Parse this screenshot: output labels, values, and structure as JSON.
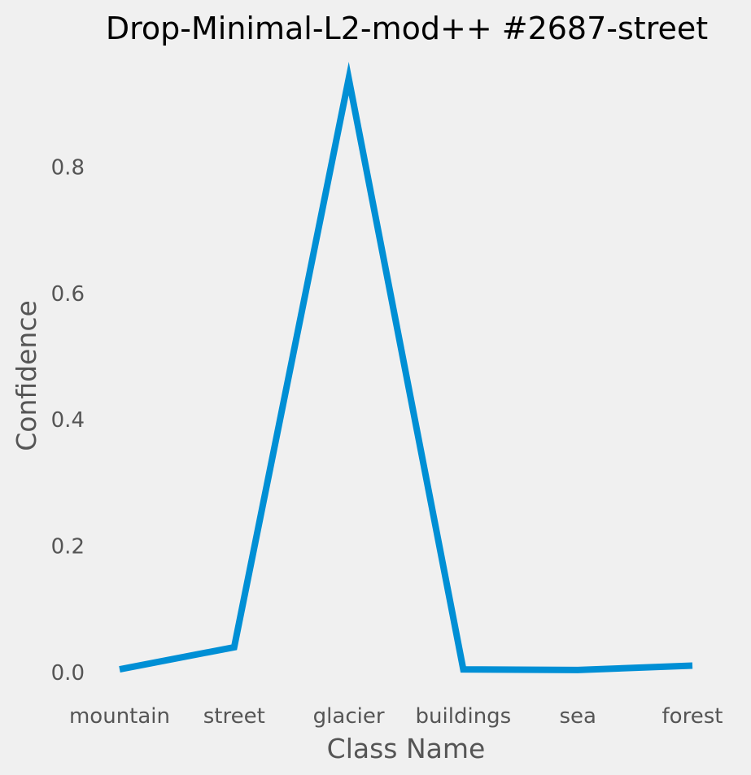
{
  "chart_data": {
    "type": "line",
    "title": "Drop-Minimal-L2-mod++ #2687-street",
    "xlabel": "Class Name",
    "ylabel": "Confidence",
    "categories": [
      "mountain",
      "street",
      "glacier",
      "buildings",
      "sea",
      "forest"
    ],
    "series": [
      {
        "values": [
          0.005,
          0.04,
          0.94,
          0.005,
          0.004,
          0.011
        ],
        "color": "#008fd5"
      }
    ],
    "yticks": [
      "0.0",
      "0.2",
      "0.4",
      "0.6",
      "0.8"
    ],
    "ylim": [
      -0.03,
      0.96
    ],
    "grid": false,
    "legend": "none"
  }
}
